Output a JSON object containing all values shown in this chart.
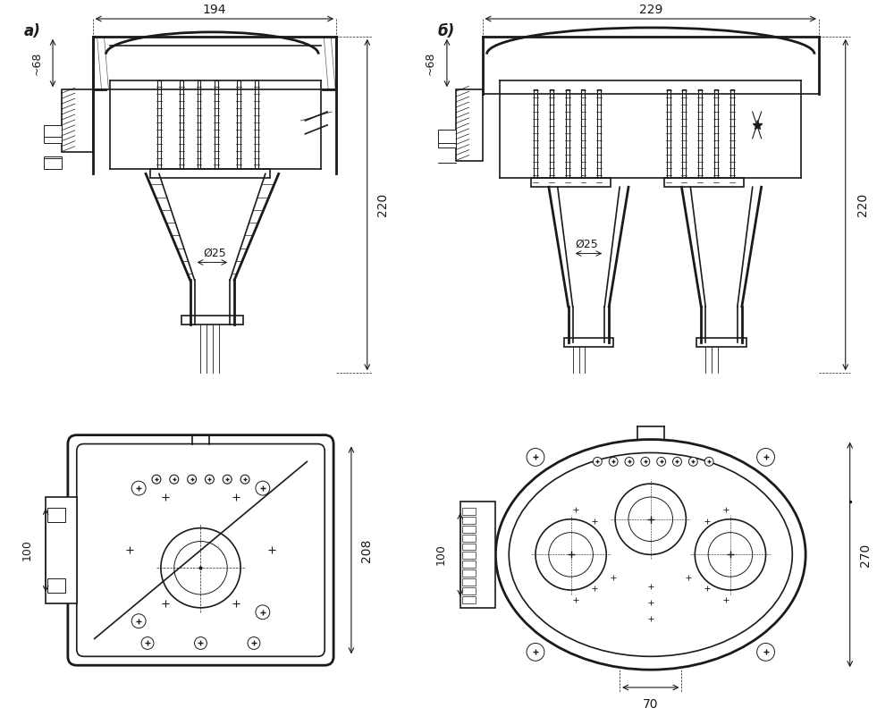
{
  "background_color": "#f0f0f0",
  "line_color": "#1a1a1a",
  "hatch_color": "#333333",
  "figsize": [
    9.81,
    8.11
  ],
  "dpi": 100,
  "labels": {
    "a_label": "а)",
    "b_label": "б)",
    "dim_194": "194",
    "dim_229": "229",
    "dim_68a": "~68",
    "dim_68b": "~68",
    "dim_220a": "220",
    "dim_220b": "220",
    "dim_25a": "Ø25",
    "dim_25b": "Ø25",
    "dim_100a": "100",
    "dim_100b": "100",
    "dim_208": "208",
    "dim_270": "270",
    "dim_70": "70"
  }
}
